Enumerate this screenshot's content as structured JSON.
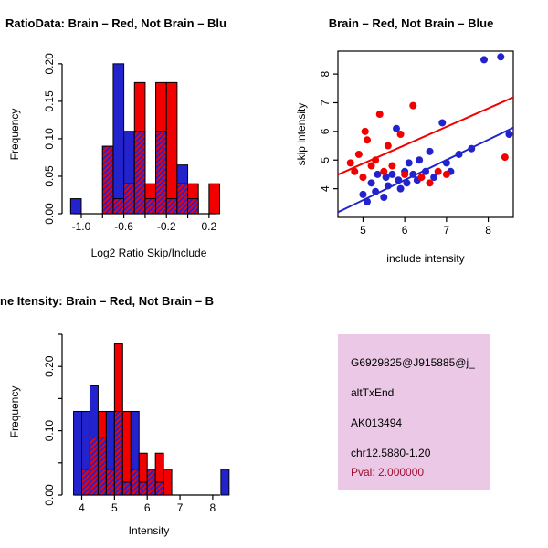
{
  "colors": {
    "red": "#F20000",
    "blue": "#2323CE",
    "axis": "#000000"
  },
  "chart_data": [
    {
      "type": "bar",
      "id": "ratio-histogram",
      "title": "RatioData: Brain – Red, Not Brain – Blu",
      "xlabel": "Log2 Ratio Skip/Include",
      "ylabel": "Frequency",
      "bin_start": -1.1,
      "bin_width": 0.1,
      "series": [
        {
          "name": "not-brain",
          "color": "blue",
          "values": [
            0.02,
            0,
            0,
            0.09,
            0.2,
            0.11,
            0.11,
            0.02,
            0.11,
            0.02,
            0.065,
            0.02,
            0,
            0
          ]
        },
        {
          "name": "brain",
          "color": "red",
          "values": [
            0,
            0,
            0,
            0.09,
            0.02,
            0.04,
            0.175,
            0.04,
            0.175,
            0.175,
            0.04,
            0.04,
            0,
            0.04
          ]
        }
      ],
      "xticks": [
        -1.0,
        -0.8,
        -0.6,
        -0.4,
        -0.2,
        0.0,
        0.2
      ],
      "xtick_labels": [
        "-1.0",
        "",
        "-0.6",
        "",
        "-0.2",
        "",
        "0.2"
      ],
      "yticks": [
        0,
        0.05,
        0.1,
        0.15,
        0.2
      ],
      "ytick_labels": [
        "0.00",
        "0.05",
        "0.10",
        "0.15",
        "0.20"
      ],
      "xlim": [
        -1.18,
        0.45
      ],
      "ylim": [
        0,
        0.212
      ],
      "grid": false,
      "legend": "none"
    },
    {
      "type": "scatter",
      "id": "intensity-scatterplot",
      "title": "Brain – Red, Not Brain – Blue",
      "xlabel": "include intensity",
      "ylabel": "skip intensity",
      "xlim": [
        4.4,
        8.6
      ],
      "ylim": [
        3.0,
        8.8
      ],
      "xticks": [
        5,
        6,
        7,
        8
      ],
      "yticks": [
        4,
        5,
        6,
        7,
        8
      ],
      "series": [
        {
          "name": "not-brain",
          "color": "blue",
          "points": [
            [
              5.0,
              3.8
            ],
            [
              5.1,
              3.55
            ],
            [
              5.2,
              4.2
            ],
            [
              5.3,
              3.9
            ],
            [
              5.35,
              4.5
            ],
            [
              5.5,
              3.7
            ],
            [
              5.55,
              4.4
            ],
            [
              5.6,
              4.1
            ],
            [
              5.7,
              4.5
            ],
            [
              5.8,
              6.1
            ],
            [
              5.85,
              4.3
            ],
            [
              5.9,
              4.0
            ],
            [
              6.0,
              4.6
            ],
            [
              6.05,
              4.2
            ],
            [
              6.1,
              4.9
            ],
            [
              6.2,
              4.5
            ],
            [
              6.3,
              4.3
            ],
            [
              6.35,
              5.0
            ],
            [
              6.5,
              4.6
            ],
            [
              6.6,
              5.3
            ],
            [
              6.7,
              4.4
            ],
            [
              6.9,
              6.3
            ],
            [
              7.0,
              4.9
            ],
            [
              7.1,
              4.6
            ],
            [
              7.3,
              5.2
            ],
            [
              7.6,
              5.4
            ],
            [
              7.9,
              8.5
            ],
            [
              8.3,
              8.6
            ],
            [
              8.5,
              5.9
            ]
          ]
        },
        {
          "name": "brain",
          "color": "red",
          "points": [
            [
              4.7,
              4.9
            ],
            [
              4.8,
              4.6
            ],
            [
              4.9,
              5.2
            ],
            [
              5.0,
              4.4
            ],
            [
              5.05,
              6.0
            ],
            [
              5.1,
              5.7
            ],
            [
              5.2,
              4.8
            ],
            [
              5.3,
              5.0
            ],
            [
              5.4,
              6.6
            ],
            [
              5.5,
              4.6
            ],
            [
              5.6,
              5.5
            ],
            [
              5.7,
              4.8
            ],
            [
              5.9,
              5.9
            ],
            [
              6.0,
              4.5
            ],
            [
              6.2,
              6.9
            ],
            [
              6.4,
              4.4
            ],
            [
              6.6,
              4.2
            ],
            [
              6.8,
              4.6
            ],
            [
              7.0,
              4.5
            ],
            [
              8.4,
              5.1
            ]
          ]
        }
      ],
      "lines": [
        {
          "color": "red",
          "x1": 4.4,
          "y1": 4.49,
          "x2": 8.6,
          "y2": 7.19
        },
        {
          "color": "blue",
          "x1": 4.4,
          "y1": 3.18,
          "x2": 8.6,
          "y2": 6.13
        }
      ],
      "grid": false,
      "legend": "none"
    },
    {
      "type": "bar",
      "id": "intensity-histogram",
      "title": "ne Itensity: Brain – Red, Not Brain – B",
      "xlabel": "Intensity",
      "ylabel": "Frequency",
      "bin_start": 3.5,
      "bin_width": 0.25,
      "series": [
        {
          "name": "not-brain",
          "color": "blue",
          "values": [
            0,
            0.13,
            0.13,
            0.17,
            0.09,
            0.13,
            0.13,
            0.02,
            0.13,
            0.02,
            0.04,
            0.02,
            0,
            0,
            0,
            0,
            0,
            0,
            0,
            0.04
          ]
        },
        {
          "name": "brain",
          "color": "red",
          "values": [
            0,
            0,
            0.04,
            0.09,
            0.13,
            0.04,
            0.235,
            0.13,
            0.04,
            0.065,
            0.04,
            0.065,
            0.04,
            0,
            0,
            0,
            0,
            0,
            0,
            0
          ]
        }
      ],
      "xticks": [
        4,
        5,
        6,
        7,
        8
      ],
      "xtick_labels": [
        "4",
        "5",
        "6",
        "7",
        "8"
      ],
      "yticks": [
        0,
        0.05,
        0.1,
        0.15,
        0.2,
        0.25
      ],
      "ytick_labels": [
        "0.00",
        "",
        "0.10",
        "",
        "0.20",
        ""
      ],
      "xlim": [
        3.4,
        8.7
      ],
      "ylim": [
        0,
        0.25
      ],
      "grid": false,
      "legend": "none"
    }
  ],
  "info_panel": {
    "bg": "#EBC9E6",
    "pval_color": "#9E1030",
    "lines": [
      "G6929825@J915885@j_",
      "altTxEnd",
      "AK013494",
      "chr12.5880-1.20"
    ],
    "pval": "Pval: 2.000000"
  }
}
